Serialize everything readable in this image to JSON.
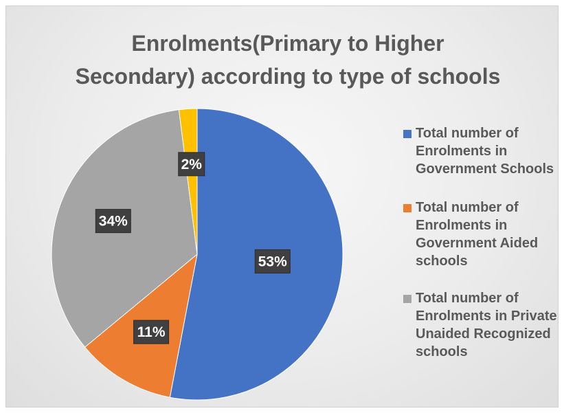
{
  "chart_data": {
    "type": "pie",
    "title": "Enrolments(Primary to Higher Secondary) according to type of schools",
    "title_lines": [
      "Enrolments(Primary to Higher",
      "Secondary) according to type of schools"
    ],
    "legend_position": "right",
    "slices": [
      {
        "label": "Total number of Enrolments in Government Schools",
        "label_lines": [
          "Total number of",
          "Enrolments in",
          "Government Schools"
        ],
        "value": 53,
        "data_label": "53%",
        "color": "#4472C4"
      },
      {
        "label": "Total number of Enrolments in Government Aided schools",
        "label_lines": [
          "Total number of",
          "Enrolments in",
          "Government Aided",
          "schools"
        ],
        "value": 11,
        "data_label": "11%",
        "color": "#ED7D31"
      },
      {
        "label": "Total number of Enrolments in Private Unaided Recognized schools",
        "label_lines": [
          "Total number of",
          "Enrolments in Private",
          "Unaided Recognized",
          "schools"
        ],
        "value": 34,
        "data_label": "34%",
        "color": "#A5A5A5"
      },
      {
        "label": "",
        "label_lines": [],
        "value": 2,
        "data_label": "2%",
        "color": "#FFC000"
      }
    ]
  }
}
